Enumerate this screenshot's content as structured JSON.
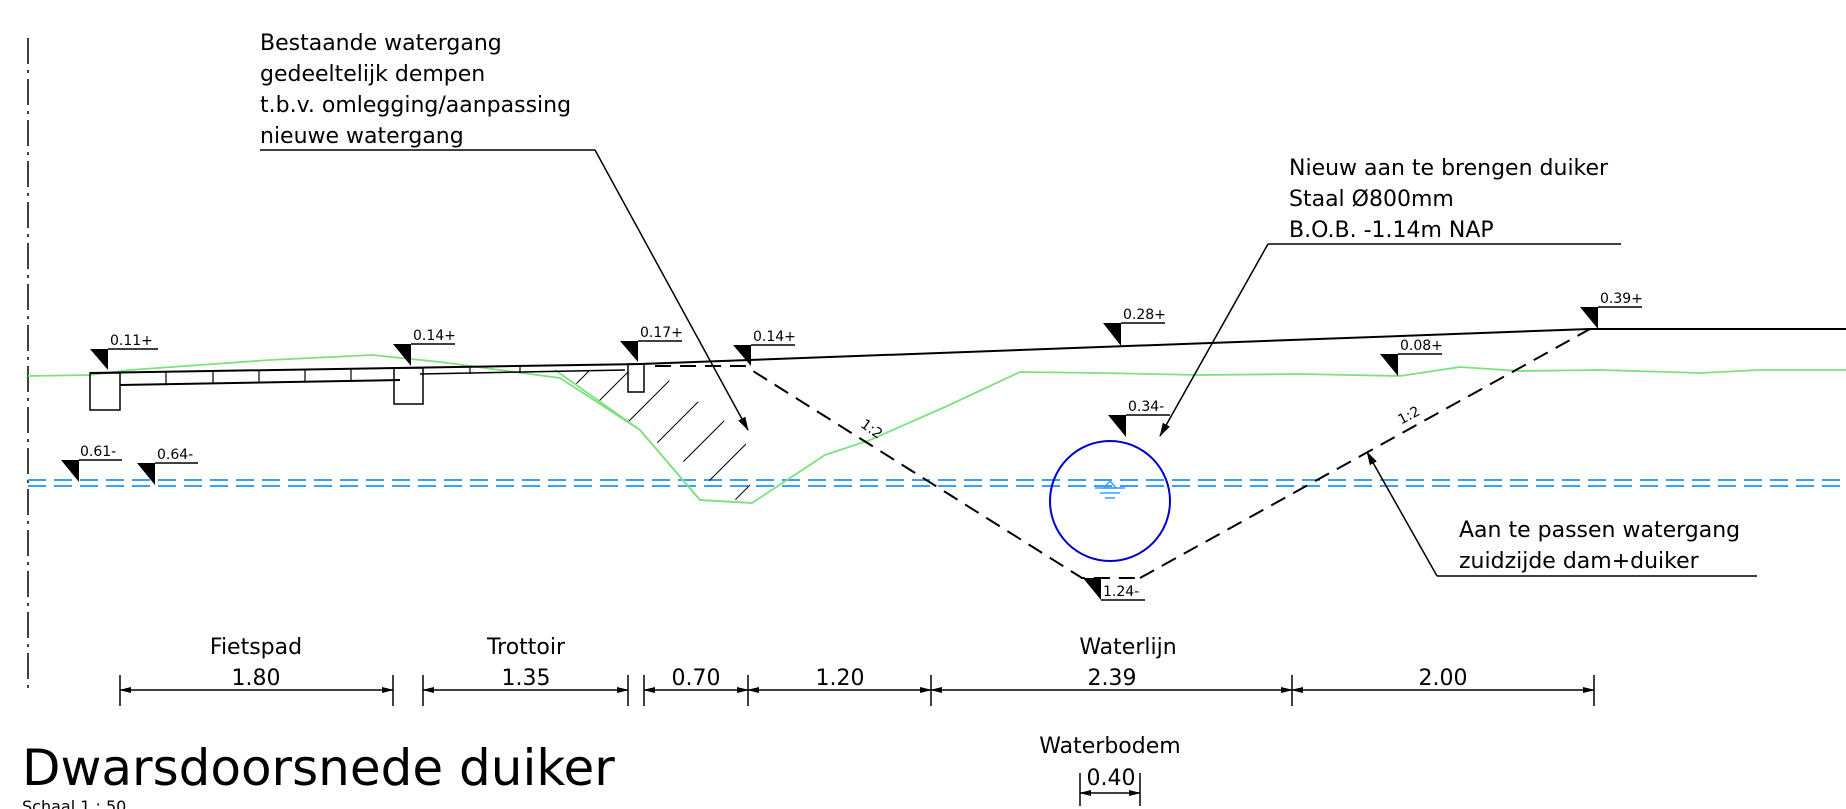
{
  "drawing": {
    "title": "Dwarsdoorsnede duiker",
    "scale": "Schaal 1 : 50"
  },
  "notes": {
    "watergang": [
      "Bestaande watergang",
      "gedeeltelijk dempen",
      "t.b.v. omlegging/aanpassing",
      "nieuwe watergang"
    ],
    "duiker": [
      "Nieuw aan te brengen duiker",
      "Staal Ø800mm",
      "B.O.B. -1.14m NAP"
    ],
    "zuidzijde": [
      "Aan te passen watergang",
      "zuidzijde dam+duiker"
    ]
  },
  "elevations": {
    "e1": "0.11+",
    "e2": "0.14+",
    "e3": "0.17+",
    "e4": "0.14+",
    "e5": "0.28+",
    "e6": "0.39+",
    "e7": "0.08+",
    "e8": "0.34-",
    "e9": "1.24-",
    "e10": "0.61-",
    "e11": "0.64-"
  },
  "slopes": {
    "left": "1:2",
    "right": "1:2"
  },
  "dimensions": {
    "labels": {
      "fietspad": "Fietspad",
      "trottoir": "Trottoir",
      "waterlijn": "Waterlijn",
      "waterbodem": "Waterbodem"
    },
    "values": {
      "d1": "1.80",
      "d2": "1.35",
      "d3": "0.70",
      "d4": "1.20",
      "d5": "2.39",
      "d6": "2.00",
      "d7": "0.40"
    }
  },
  "colors": {
    "line": "#000000",
    "ground": "#7ee07e",
    "water": "#3aa0ff",
    "pipe": "#0000cc"
  }
}
